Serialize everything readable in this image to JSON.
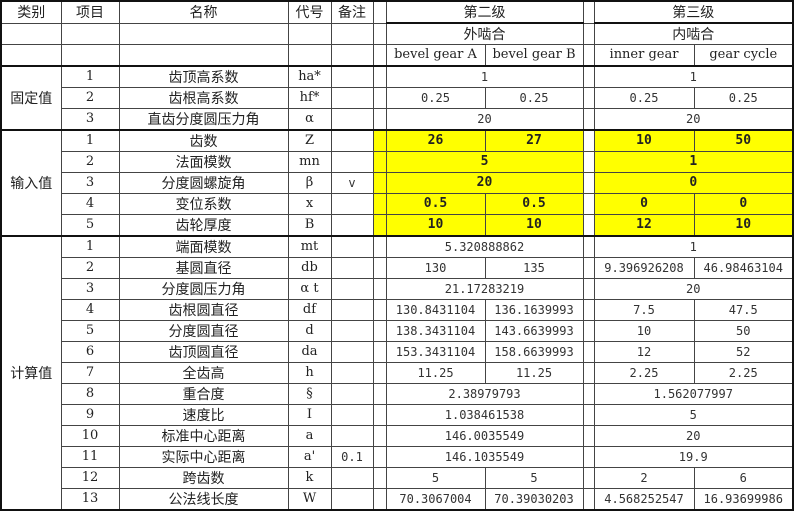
{
  "header": {
    "category": "类别",
    "item": "项目",
    "name": "名称",
    "code": "代号",
    "note": "备注",
    "stage2": "第二级",
    "stage3": "第三级",
    "stage2_mesh": "外啮合",
    "stage3_mesh": "内啮合",
    "stage2_cols": [
      "bevel gear A",
      "bevel gear B"
    ],
    "stage3_cols": [
      "inner gear",
      "gear cycle"
    ]
  },
  "highlight_color": "#ffff00",
  "sections": [
    {
      "category": "固定值",
      "input": false,
      "rows": [
        {
          "idx": "1",
          "name": "齿顶高系数",
          "code": "ha*",
          "note": "",
          "s2": [
            "1"
          ],
          "s3": [
            "1"
          ]
        },
        {
          "idx": "2",
          "name": "齿根高系数",
          "code": "hf*",
          "note": "",
          "s2": [
            "0.25",
            "0.25"
          ],
          "s3": [
            "0.25",
            "0.25"
          ]
        },
        {
          "idx": "3",
          "name": "直齿分度圆压力角",
          "code": "α",
          "note": "",
          "s2": [
            "20"
          ],
          "s3": [
            "20"
          ],
          "merged_all": true
        }
      ]
    },
    {
      "category": "输入值",
      "input": true,
      "rows": [
        {
          "idx": "1",
          "name": "齿数",
          "code": "Z",
          "note": "",
          "s2": [
            "26",
            "27"
          ],
          "s3": [
            "10",
            "50"
          ]
        },
        {
          "idx": "2",
          "name": "法面模数",
          "code": "mn",
          "note": "",
          "s2": [
            "5"
          ],
          "s3": [
            "1"
          ]
        },
        {
          "idx": "3",
          "name": "分度圆螺旋角",
          "code": "β",
          "note": "v",
          "s2": [
            "20"
          ],
          "s3": [
            "0"
          ]
        },
        {
          "idx": "4",
          "name": "变位系数",
          "code": "x",
          "note": "",
          "s2": [
            "0.5",
            "0.5"
          ],
          "s3": [
            "0",
            "0"
          ]
        },
        {
          "idx": "5",
          "name": "齿轮厚度",
          "code": "B",
          "note": "",
          "s2": [
            "10",
            "10"
          ],
          "s3": [
            "12",
            "10"
          ]
        }
      ]
    },
    {
      "category": "计算值",
      "input": false,
      "rows": [
        {
          "idx": "1",
          "name": "端面模数",
          "code": "mt",
          "note": "",
          "s2": [
            "5.320888862"
          ],
          "s3": [
            "1"
          ]
        },
        {
          "idx": "2",
          "name": "基圆直径",
          "code": "db",
          "note": "",
          "s2": [
            "130",
            "135"
          ],
          "s3": [
            "9.396926208",
            "46.98463104"
          ]
        },
        {
          "idx": "3",
          "name": "分度圆压力角",
          "code": "α t",
          "note": "",
          "s2": [
            "21.17283219"
          ],
          "s3": [
            "20"
          ]
        },
        {
          "idx": "4",
          "name": "齿根圆直径",
          "code": "df",
          "note": "",
          "s2": [
            "130.8431104",
            "136.1639993"
          ],
          "s3": [
            "7.5",
            "47.5"
          ]
        },
        {
          "idx": "5",
          "name": "分度圆直径",
          "code": "d",
          "note": "",
          "s2": [
            "138.3431104",
            "143.6639993"
          ],
          "s3": [
            "10",
            "50"
          ]
        },
        {
          "idx": "6",
          "name": "齿顶圆直径",
          "code": "da",
          "note": "",
          "s2": [
            "153.3431104",
            "158.6639993"
          ],
          "s3": [
            "12",
            "52"
          ]
        },
        {
          "idx": "7",
          "name": "全齿高",
          "code": "h",
          "note": "",
          "s2": [
            "11.25",
            "11.25"
          ],
          "s3": [
            "2.25",
            "2.25"
          ]
        },
        {
          "idx": "8",
          "name": "重合度",
          "code": "§",
          "note": "",
          "s2": [
            "2.38979793"
          ],
          "s3": [
            "1.562077997"
          ]
        },
        {
          "idx": "9",
          "name": "速度比",
          "code": "I",
          "note": "",
          "s2": [
            "1.038461538"
          ],
          "s3": [
            "5"
          ]
        },
        {
          "idx": "10",
          "name": "标准中心距离",
          "code": "a",
          "note": "",
          "s2": [
            "146.0035549"
          ],
          "s3": [
            "20"
          ]
        },
        {
          "idx": "11",
          "name": "实际中心距离",
          "code": "a'",
          "note": "0.1",
          "s2": [
            "146.1035549"
          ],
          "s3": [
            "19.9"
          ]
        },
        {
          "idx": "12",
          "name": "跨齿数",
          "code": "k",
          "note": "",
          "s2": [
            "5",
            "5"
          ],
          "s3": [
            "2",
            "6"
          ]
        },
        {
          "idx": "13",
          "name": "公法线长度",
          "code": "W",
          "note": "",
          "s2": [
            "70.3067004",
            "70.39030203"
          ],
          "s3": [
            "4.568252547",
            "16.93699986"
          ]
        }
      ]
    }
  ]
}
